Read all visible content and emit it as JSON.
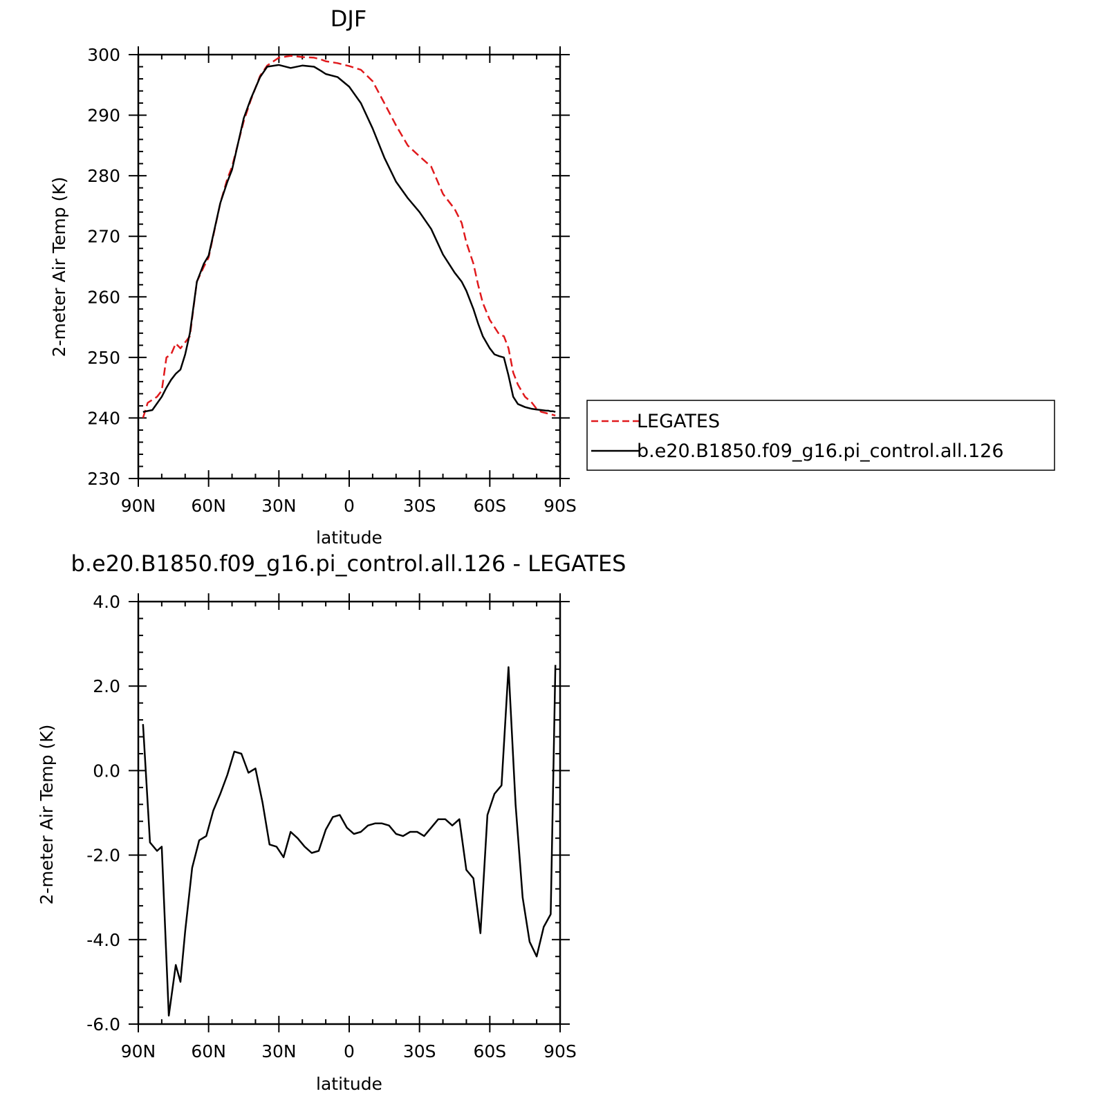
{
  "chart_data": [
    {
      "type": "line",
      "title": "DJF",
      "xlabel": "latitude",
      "ylabel": "2-meter Air Temp (K)",
      "xlim": [
        -90,
        90
      ],
      "ylim": [
        230,
        300
      ],
      "x_tick_values": [
        90,
        60,
        30,
        0,
        -30,
        -60,
        -90
      ],
      "x_tick_labels": [
        "90N",
        "60N",
        "30N",
        "0",
        "30S",
        "60S",
        "90S"
      ],
      "y_ticks": [
        "230",
        "240",
        "250",
        "260",
        "270",
        "280",
        "290",
        "300"
      ],
      "y_tick_values": [
        230,
        240,
        250,
        260,
        270,
        280,
        290,
        300
      ],
      "legend_position": "right",
      "series": [
        {
          "name": "LEGATES",
          "color": "#e0191c",
          "dash": "dashed",
          "x": [
            88,
            86,
            84,
            82,
            80,
            78,
            76,
            74,
            72,
            70,
            68,
            65,
            62,
            60,
            55,
            52,
            50,
            45,
            42,
            40,
            38,
            35,
            30,
            25,
            20,
            15,
            12,
            10,
            5,
            0,
            -5,
            -10,
            -15,
            -20,
            -25,
            -30,
            -35,
            -40,
            -45,
            -48,
            -50,
            -53,
            -55,
            -57,
            -60,
            -62,
            -64,
            -66,
            -68,
            -70,
            -72,
            -75,
            -78,
            -80,
            -82,
            -84,
            -85,
            -86,
            -87,
            -88
          ],
          "y": [
            240,
            242.5,
            243,
            243.5,
            244.5,
            250,
            250.5,
            252.3,
            251.5,
            252.5,
            253.5,
            262.5,
            265,
            266.5,
            275.5,
            279.5,
            281.5,
            289,
            292.5,
            294.5,
            296.5,
            298.2,
            299.5,
            299.8,
            299.6,
            299.5,
            299.2,
            298.9,
            298.6,
            298.1,
            297.5,
            295.6,
            292,
            288.3,
            285,
            283.2,
            281.5,
            277,
            274.5,
            272.2,
            269,
            265.5,
            262,
            259,
            256.2,
            255,
            253.8,
            253.5,
            251.5,
            247.5,
            245.5,
            243.5,
            242.5,
            241.5,
            241,
            240.8,
            240.7,
            240.6,
            240.5,
            240.4
          ]
        },
        {
          "name": "b.e20.B1850.f09_g16.pi_control.all.126",
          "color": "#000000",
          "dash": "solid",
          "x": [
            88,
            84,
            80,
            78,
            76,
            74,
            72,
            70,
            68,
            65,
            62,
            60,
            55,
            52,
            50,
            45,
            42,
            40,
            38,
            35,
            30,
            25,
            20,
            15,
            12,
            10,
            5,
            0,
            -5,
            -10,
            -15,
            -20,
            -25,
            -30,
            -35,
            -40,
            -45,
            -48,
            -50,
            -53,
            -55,
            -57,
            -60,
            -62,
            -64,
            -66,
            -68,
            -70,
            -72,
            -75,
            -78,
            -80,
            -82,
            -84,
            -85,
            -86,
            -87,
            -88
          ],
          "y": [
            241,
            241.3,
            243.5,
            245,
            246.3,
            247.3,
            248,
            250.5,
            254,
            262.5,
            265.5,
            266.8,
            275.5,
            279,
            281,
            289.5,
            292.7,
            294.5,
            296.3,
            298,
            298.3,
            297.8,
            298.2,
            298,
            297.3,
            296.8,
            296.3,
            294.7,
            292,
            287.8,
            283,
            279,
            276.3,
            274,
            271.2,
            267,
            264,
            262.5,
            261,
            258,
            255.6,
            253.5,
            251.5,
            250.5,
            250.2,
            250,
            247,
            243.5,
            242.3,
            241.8,
            241.5,
            241.4,
            241.3,
            241.2,
            241.2,
            241.1,
            241.1,
            241
          ]
        }
      ]
    },
    {
      "type": "line",
      "title": "b.e20.B1850.f09_g16.pi_control.all.126 - LEGATES",
      "xlabel": "latitude",
      "ylabel": "2-meter Air Temp (K)",
      "xlim": [
        -90,
        90
      ],
      "ylim": [
        -6,
        4
      ],
      "x_tick_values": [
        90,
        60,
        30,
        0,
        -30,
        -60,
        -90
      ],
      "x_tick_labels": [
        "90N",
        "60N",
        "30N",
        "0",
        "30S",
        "60S",
        "90S"
      ],
      "y_ticks": [
        "-6.0",
        "-4.0",
        "-2.0",
        "0.0",
        "2.0",
        "4.0"
      ],
      "y_tick_values": [
        -6,
        -4,
        -2,
        0,
        2,
        4
      ],
      "series": [
        {
          "color": "#000000",
          "dash": "solid",
          "x": [
            88,
            85,
            82,
            80,
            77,
            74,
            72,
            70,
            67,
            64,
            61,
            58,
            55,
            52,
            49,
            46,
            43,
            40,
            37,
            34,
            31,
            28,
            25,
            22,
            19,
            16,
            13,
            10,
            7,
            4,
            1,
            -2,
            -5,
            -8,
            -11,
            -14,
            -17,
            -20,
            -23,
            -26,
            -29,
            -32,
            -35,
            -38,
            -41,
            -44,
            -47,
            -50,
            -53,
            -56,
            -59,
            -62,
            -65,
            -68,
            -71,
            -74,
            -77,
            -80,
            -83,
            -86,
            -88
          ],
          "y": [
            1.1,
            -1.7,
            -1.9,
            -1.8,
            -5.8,
            -4.6,
            -5.0,
            -3.8,
            -2.3,
            -1.65,
            -1.55,
            -0.95,
            -0.55,
            -0.1,
            0.45,
            0.4,
            -0.05,
            0.05,
            -0.75,
            -1.75,
            -1.8,
            -2.05,
            -1.45,
            -1.6,
            -1.8,
            -1.95,
            -1.9,
            -1.4,
            -1.1,
            -1.05,
            -1.35,
            -1.5,
            -1.45,
            -1.3,
            -1.25,
            -1.25,
            -1.3,
            -1.5,
            -1.55,
            -1.45,
            -1.45,
            -1.55,
            -1.35,
            -1.15,
            -1.15,
            -1.3,
            -1.15,
            -2.35,
            -2.55,
            -3.85,
            -1.05,
            -0.55,
            -0.35,
            2.45,
            -0.8,
            -3.0,
            -4.05,
            -4.4,
            -3.7,
            -3.4,
            2.5
          ]
        }
      ]
    }
  ]
}
